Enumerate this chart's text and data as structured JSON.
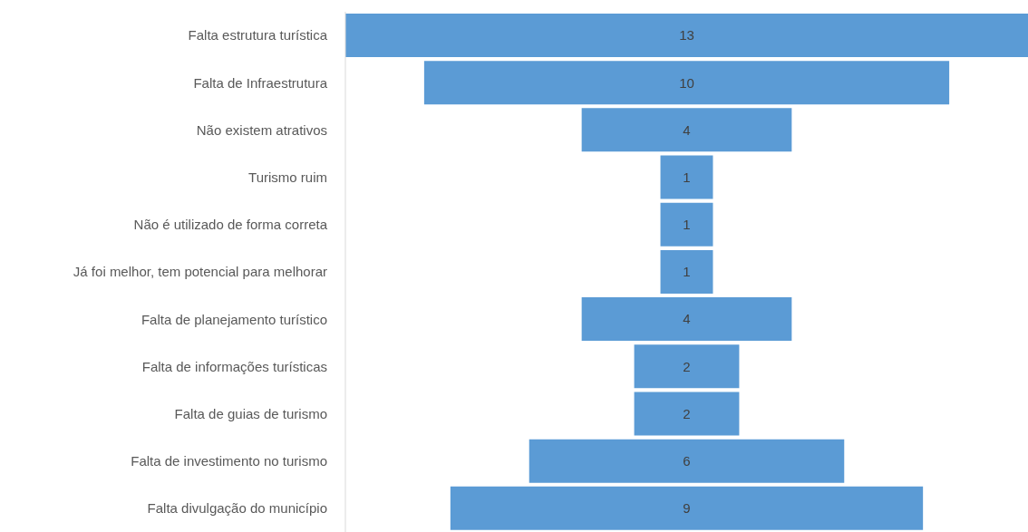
{
  "chart_data": {
    "type": "other",
    "categories": [
      "Falta estrutura turística",
      "Falta de Infraestrutura",
      "Não existem atrativos",
      "Turismo ruim",
      "Não é utilizado de forma correta",
      "Já foi melhor, tem potencial para melhorar",
      "Falta de planejamento turístico",
      "Falta de informações turísticas",
      "Falta de guias de turismo",
      "Falta de investimento no turismo",
      "Falta divulgação do município"
    ],
    "values": [
      13,
      10,
      4,
      1,
      1,
      1,
      4,
      2,
      2,
      6,
      9
    ],
    "color": "#5b9bd5",
    "data_labels": true
  }
}
